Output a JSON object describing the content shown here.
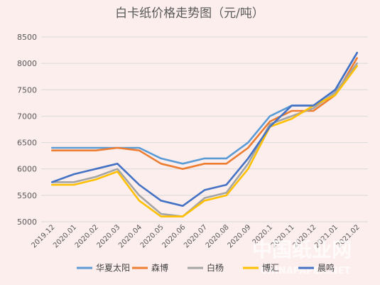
{
  "chart_data": {
    "type": "line",
    "title": "白卡纸价格走势图（元/吨）",
    "xlabel": "",
    "ylabel": "",
    "categories": [
      "2019.12",
      "2020.01",
      "2020.02",
      "2020.03",
      "2020.04",
      "2020.05",
      "2020.06",
      "2020.07",
      "2020.08",
      "2020.09",
      "2020.1",
      "2020.11",
      "2020.12",
      "2021.01",
      "2021.02"
    ],
    "ylim": [
      5000,
      8500
    ],
    "yticks": [
      5000,
      5500,
      6000,
      6500,
      7000,
      7500,
      8000,
      8500
    ],
    "grid": true,
    "legend_position": "bottom",
    "series": [
      {
        "name": "华夏太阳",
        "color": "#5b9bd5",
        "values": [
          6400,
          6400,
          6400,
          6400,
          6400,
          6200,
          6100,
          6200,
          6200,
          6500,
          7000,
          7200,
          7200,
          7500,
          8200
        ]
      },
      {
        "name": "森博",
        "color": "#ed7d31",
        "values": [
          6350,
          6350,
          6350,
          6400,
          6350,
          6100,
          6000,
          6100,
          6100,
          6400,
          6900,
          7100,
          7100,
          7400,
          8100
        ]
      },
      {
        "name": "白杨",
        "color": "#a5a5a5",
        "values": [
          5750,
          5750,
          5850,
          6000,
          5500,
          5150,
          5100,
          5450,
          5550,
          6100,
          6850,
          7000,
          7150,
          7450,
          8000
        ]
      },
      {
        "name": "博汇",
        "color": "#ffc000",
        "values": [
          5700,
          5700,
          5800,
          5950,
          5400,
          5100,
          5100,
          5400,
          5500,
          6000,
          6800,
          6950,
          7200,
          7400,
          7950
        ]
      },
      {
        "name": "晨鸣",
        "color": "#4472c4",
        "values": [
          5750,
          5900,
          6000,
          6100,
          5700,
          5400,
          5300,
          5600,
          5700,
          6200,
          6800,
          7200,
          7200,
          7500,
          8200
        ]
      }
    ]
  },
  "watermark": {
    "main": "中国纸业网",
    "sub": "CHINAPAPER.NET"
  }
}
